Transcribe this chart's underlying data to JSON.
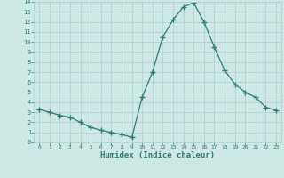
{
  "x": [
    0,
    1,
    2,
    3,
    4,
    5,
    6,
    7,
    8,
    9,
    10,
    11,
    12,
    13,
    14,
    15,
    16,
    17,
    18,
    19,
    20,
    21,
    22,
    23
  ],
  "y": [
    3.3,
    3.0,
    2.7,
    2.5,
    2.0,
    1.5,
    1.2,
    1.0,
    0.8,
    0.5,
    4.5,
    7.0,
    10.5,
    12.2,
    13.5,
    13.9,
    12.0,
    9.5,
    7.2,
    5.8,
    5.0,
    4.5,
    3.5,
    3.2
  ],
  "xlabel": "Humidex (Indice chaleur)",
  "line_color": "#2e7d6e",
  "marker": "+",
  "markersize": 4.0,
  "linewidth": 0.9,
  "bg_color": "#cde8e5",
  "grid_color": "#aecfcc",
  "tick_label_color": "#2e7d6e",
  "xlabel_color": "#2e7d6e",
  "ylim": [
    0,
    14
  ],
  "xlim": [
    -0.5,
    23.5
  ],
  "yticks": [
    0,
    1,
    2,
    3,
    4,
    5,
    6,
    7,
    8,
    9,
    10,
    11,
    12,
    13,
    14
  ],
  "xticks": [
    0,
    1,
    2,
    3,
    4,
    5,
    6,
    7,
    8,
    9,
    10,
    11,
    12,
    13,
    14,
    15,
    16,
    17,
    18,
    19,
    20,
    21,
    22,
    23
  ]
}
